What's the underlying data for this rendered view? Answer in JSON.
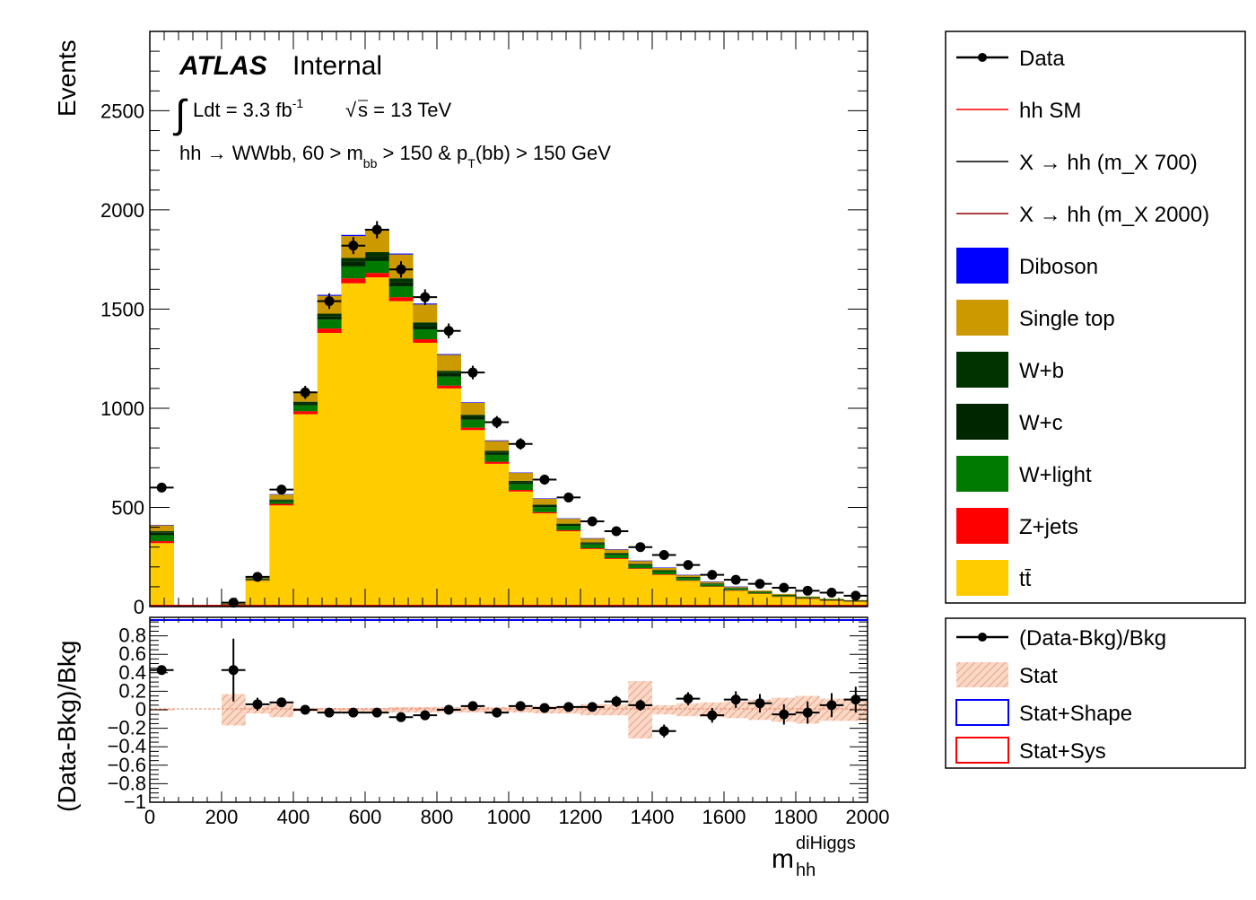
{
  "header": {
    "atlas": "ATLAS",
    "internal": "Internal",
    "lumi_text": "Ldt = 3.3 fb",
    "lumi_sup": "-1",
    "sqrt_s": "s = 13 TeV",
    "selection_pre": "hh →  WWbb, 60 > m",
    "selection_sub1": "bb",
    "selection_mid": " > 150 & p",
    "selection_sub2": "T",
    "selection_post": "(bb) > 150 GeV"
  },
  "axes": {
    "ylabel_top": "Events",
    "ylabel_bottom": "(Data-Bkg)/Bkg",
    "xlabel_main": "m",
    "xlabel_sub": "hh",
    "xlabel_sup": "diHiggs"
  },
  "legend_main": [
    {
      "label": "Data",
      "kind": "marker"
    },
    {
      "label": "hh SM",
      "kind": "line",
      "color": "#ff0000"
    },
    {
      "label": "X → hh (m_X 700)",
      "kind": "line",
      "color": "#000000"
    },
    {
      "label": "X → hh (m_X 2000)",
      "kind": "line",
      "color": "#990000"
    },
    {
      "label": "Diboson",
      "kind": "box",
      "color": "#0000ff"
    },
    {
      "label": "Single top",
      "kind": "box",
      "color": "#cc9900"
    },
    {
      "label": "W+b",
      "kind": "box",
      "color": "#003300"
    },
    {
      "label": "W+c",
      "kind": "box",
      "color": "#002600"
    },
    {
      "label": "W+light",
      "kind": "box",
      "color": "#007a00"
    },
    {
      "label": "Z+jets",
      "kind": "box",
      "color": "#ff0000"
    },
    {
      "label": "tt̄",
      "kind": "box",
      "color": "#ffcc00"
    }
  ],
  "legend_ratio": [
    {
      "label": "(Data-Bkg)/Bkg",
      "kind": "marker"
    },
    {
      "label": "Stat",
      "kind": "hatch",
      "color": "#f3b89a"
    },
    {
      "label": "Stat+Shape",
      "kind": "outline",
      "color": "#0000ff"
    },
    {
      "label": "Stat+Sys",
      "kind": "outline",
      "color": "#ff0000"
    }
  ],
  "chart_data": [
    {
      "type": "bar",
      "title": "",
      "xlabel": "m_hh^diHiggs",
      "ylabel": "Events",
      "xlim": [
        0,
        2000
      ],
      "ylim": [
        0,
        2900
      ],
      "stacked": true,
      "bin_edges": [
        0,
        66.7,
        133.3,
        200,
        266.7,
        333.3,
        400,
        466.7,
        533.3,
        600,
        666.7,
        733.3,
        800,
        866.7,
        933.3,
        1000,
        1066.7,
        1133.3,
        1200,
        1266.7,
        1333.3,
        1400,
        1466.7,
        1533.3,
        1600,
        1666.7,
        1733.3,
        1800,
        1866.7,
        1933.3,
        2000
      ],
      "y_ticks": [
        0,
        500,
        1000,
        1500,
        2000,
        2500
      ],
      "x_ticks": [
        0,
        200,
        400,
        600,
        800,
        1000,
        1200,
        1400,
        1600,
        1800,
        2000
      ],
      "series": [
        {
          "name": "tt̄",
          "color": "#ffcc00",
          "values": [
            320,
            0,
            0,
            10,
            130,
            510,
            970,
            1380,
            1630,
            1660,
            1540,
            1330,
            1100,
            890,
            720,
            580,
            470,
            380,
            290,
            240,
            190,
            160,
            130,
            100,
            80,
            65,
            50,
            40,
            30,
            25
          ]
        },
        {
          "name": "Z+jets",
          "color": "#ff0000",
          "values": [
            10,
            0,
            0,
            0,
            3,
            8,
            15,
            22,
            25,
            22,
            20,
            18,
            14,
            12,
            10,
            8,
            6,
            5,
            4,
            4,
            3,
            3,
            2,
            2,
            2,
            1,
            1,
            1,
            1,
            1
          ]
        },
        {
          "name": "W+light",
          "color": "#007a00",
          "values": [
            30,
            0,
            0,
            1,
            5,
            12,
            30,
            45,
            60,
            60,
            55,
            50,
            45,
            40,
            35,
            30,
            25,
            22,
            20,
            18,
            16,
            14,
            12,
            10,
            8,
            7,
            6,
            5,
            4,
            3
          ]
        },
        {
          "name": "W+c",
          "color": "#002600",
          "values": [
            12,
            0,
            0,
            1,
            2,
            5,
            10,
            18,
            25,
            25,
            22,
            20,
            18,
            15,
            12,
            10,
            8,
            7,
            6,
            5,
            4,
            4,
            3,
            3,
            2,
            2,
            2,
            1,
            1,
            1
          ]
        },
        {
          "name": "W+b",
          "color": "#003300",
          "values": [
            8,
            0,
            0,
            0,
            2,
            5,
            8,
            12,
            18,
            20,
            18,
            15,
            12,
            10,
            8,
            6,
            5,
            4,
            4,
            3,
            3,
            3,
            2,
            2,
            2,
            1,
            1,
            1,
            1,
            1
          ]
        },
        {
          "name": "Single top",
          "color": "#cc9900",
          "values": [
            30,
            0,
            0,
            3,
            10,
            25,
            45,
            90,
            110,
            110,
            120,
            90,
            80,
            60,
            50,
            40,
            30,
            25,
            20,
            18,
            15,
            12,
            10,
            8,
            6,
            5,
            4,
            3,
            3,
            2
          ]
        },
        {
          "name": "Diboson",
          "color": "#0000ff",
          "values": [
            2,
            0,
            0,
            0,
            1,
            2,
            3,
            5,
            6,
            6,
            5,
            5,
            4,
            3,
            3,
            2,
            2,
            2,
            1,
            1,
            1,
            1,
            1,
            1,
            1,
            0,
            0,
            0,
            0,
            0
          ]
        }
      ],
      "data": {
        "name": "Data",
        "x": [
          33,
          233,
          300,
          367,
          433,
          500,
          567,
          633,
          700,
          767,
          833,
          900,
          967,
          1033,
          1100,
          1167,
          1233,
          1300,
          1367,
          1433,
          1500,
          1567,
          1633,
          1700,
          1767,
          1833,
          1900,
          1967
        ],
        "y": [
          600,
          20,
          150,
          590,
          1080,
          1540,
          1820,
          1900,
          1700,
          1560,
          1390,
          1180,
          930,
          820,
          640,
          550,
          430,
          380,
          300,
          260,
          210,
          160,
          135,
          115,
          95,
          80,
          70,
          55
        ]
      },
      "signal_overlays": [
        "hh SM",
        "X → hh (m_X 700)",
        "X → hh (m_X 2000)"
      ]
    },
    {
      "type": "scatter",
      "title": "",
      "xlabel": "m_hh^diHiggs",
      "ylabel": "(Data-Bkg)/Bkg",
      "xlim": [
        0,
        2000
      ],
      "ylim": [
        -1,
        1
      ],
      "y_ticks": [
        -1,
        -0.8,
        -0.6,
        -0.4,
        -0.2,
        0,
        0.2,
        0.4,
        0.6,
        0.8
      ],
      "y_tick_labels": [
        "−1",
        "−0.8",
        "−0.6",
        "−0.4",
        "−0.2",
        "0",
        "0.2",
        "0.4",
        "0.6",
        "0.8"
      ],
      "x_tick_labels": [
        "0",
        "200",
        "400",
        "600",
        "800",
        "1000",
        "1200",
        "1400",
        "1600",
        "1800",
        "2000"
      ],
      "x": [
        33,
        233,
        300,
        367,
        433,
        500,
        567,
        633,
        700,
        767,
        833,
        900,
        967,
        1033,
        1100,
        1167,
        1233,
        1300,
        1367,
        1433,
        1500,
        1567,
        1633,
        1700,
        1767,
        1833,
        1900,
        1967
      ],
      "y": [
        0.43,
        0.43,
        0.06,
        0.08,
        0.0,
        -0.03,
        -0.03,
        -0.03,
        -0.08,
        -0.06,
        0.0,
        0.04,
        -0.03,
        0.04,
        0.02,
        0.03,
        0.03,
        0.09,
        0.05,
        -0.23,
        0.12,
        -0.06,
        0.11,
        0.07,
        -0.05,
        -0.03,
        0.05,
        0.11
      ],
      "y_err": [
        0.05,
        0.34,
        0.07,
        0.05,
        0.03,
        0.03,
        0.03,
        0.03,
        0.03,
        0.03,
        0.03,
        0.03,
        0.03,
        0.04,
        0.04,
        0.05,
        0.05,
        0.06,
        0.06,
        0.07,
        0.07,
        0.08,
        0.09,
        0.1,
        0.11,
        0.12,
        0.13,
        0.14
      ],
      "stat_band": [
        0.01,
        0,
        0,
        0.17,
        0.04,
        0.08,
        0.02,
        0.02,
        0.02,
        0.02,
        0.03,
        0.03,
        0.03,
        0.03,
        0.03,
        0.03,
        0.04,
        0.04,
        0.06,
        0.06,
        0.31,
        0.05,
        0.07,
        0.08,
        0.09,
        0.11,
        0.13,
        0.15,
        0.12,
        0.12
      ]
    }
  ]
}
